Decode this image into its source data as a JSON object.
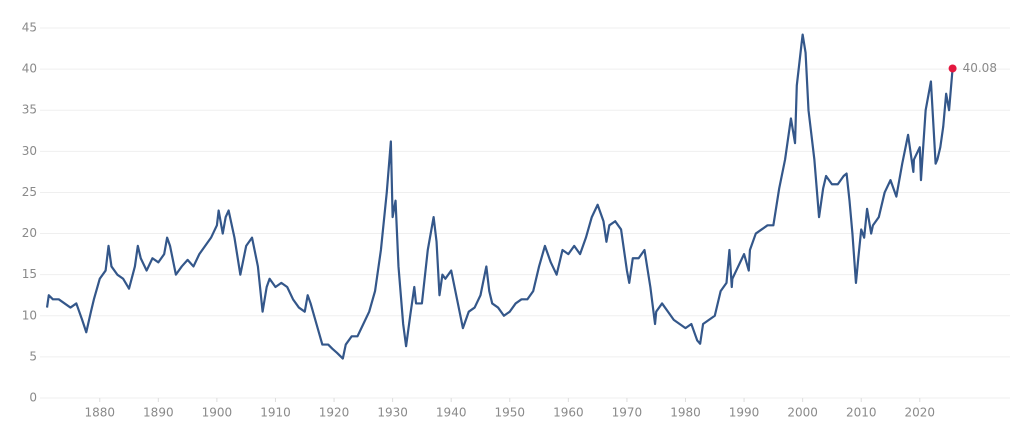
{
  "chart_data": {
    "type": "line",
    "x": [
      1871,
      1871.3,
      1872,
      1873,
      1874,
      1875,
      1876,
      1877,
      1877.7,
      1878.5,
      1879,
      1880,
      1881,
      1881.5,
      1882,
      1883,
      1884,
      1885,
      1886,
      1886.5,
      1887,
      1888,
      1889,
      1890,
      1891,
      1891.5,
      1892,
      1893,
      1894,
      1895,
      1896,
      1897,
      1898,
      1899,
      1900,
      1900.3,
      1901,
      1901.5,
      1902,
      1903,
      1904,
      1905,
      1906,
      1907,
      1907.8,
      1908.5,
      1909,
      1910,
      1911,
      1912,
      1913,
      1914,
      1915,
      1915.5,
      1916,
      1917,
      1918,
      1919,
      1919.7,
      1920.5,
      1921.5,
      1922,
      1923,
      1924,
      1925,
      1926,
      1927,
      1928,
      1929,
      1929.7,
      1930,
      1930.5,
      1931,
      1931.8,
      1932.3,
      1933,
      1933.7,
      1934,
      1935,
      1936,
      1937,
      1937.5,
      1938,
      1938.5,
      1939,
      1940,
      1941,
      1942,
      1943,
      1944,
      1945,
      1946,
      1946.5,
      1947,
      1948,
      1949,
      1950,
      1951,
      1952,
      1953,
      1954,
      1955,
      1956,
      1957,
      1958,
      1959,
      1960,
      1961,
      1962,
      1963,
      1964,
      1965,
      1966,
      1966.5,
      1967,
      1968,
      1969,
      1970,
      1970.4,
      1971,
      1972,
      1973,
      1974,
      1974.8,
      1975,
      1976,
      1977,
      1978,
      1979,
      1980,
      1981,
      1982,
      1982.5,
      1983,
      1984,
      1985,
      1986,
      1987,
      1987.5,
      1987.9,
      1988,
      1989,
      1990,
      1990.8,
      1991,
      1992,
      1993,
      1994,
      1995,
      1996,
      1997,
      1998,
      1998.7,
      1999,
      1999.8,
      2000,
      2000.5,
      2001,
      2002,
      2002.8,
      2003,
      2003.5,
      2004,
      2005,
      2006,
      2007,
      2007.5,
      2008,
      2008.5,
      2009.1,
      2009.5,
      2010,
      2010.5,
      2011,
      2011.7,
      2012,
      2013,
      2014,
      2015,
      2016,
      2017,
      2018,
      2018.9,
      2019,
      2020,
      2020.2,
      2021,
      2021.9,
      2022.7,
      2023,
      2023.5,
      2024,
      2024.5,
      2025,
      2025.6
    ],
    "series": [
      {
        "color": "#34578a",
        "values": [
          11.0,
          12.5,
          12.0,
          12.0,
          11.5,
          11.0,
          11.5,
          9.5,
          8.0,
          10.5,
          12.0,
          14.5,
          15.5,
          18.5,
          16.0,
          15.0,
          14.5,
          13.3,
          16.0,
          18.5,
          17.0,
          15.5,
          17.0,
          16.5,
          17.5,
          19.5,
          18.5,
          15.0,
          16.0,
          16.8,
          16.0,
          17.5,
          18.5,
          19.5,
          21.0,
          22.8,
          20.0,
          22.0,
          22.8,
          19.5,
          15.0,
          18.5,
          19.5,
          16.0,
          10.5,
          13.5,
          14.5,
          13.5,
          14.0,
          13.5,
          12.0,
          11.0,
          10.5,
          12.5,
          11.5,
          9.0,
          6.5,
          6.5,
          6.0,
          5.5,
          4.8,
          6.5,
          7.5,
          7.5,
          9.0,
          10.5,
          13.0,
          18.0,
          25.0,
          31.2,
          22.0,
          24.0,
          16.0,
          9.0,
          6.3,
          10.0,
          13.5,
          11.5,
          11.5,
          18.0,
          22.0,
          19.0,
          12.5,
          15.0,
          14.5,
          15.5,
          12.0,
          8.5,
          10.5,
          11.0,
          12.5,
          16.0,
          13.0,
          11.5,
          11.0,
          10.0,
          10.5,
          11.5,
          12.0,
          12.0,
          13.0,
          16.0,
          18.5,
          16.5,
          15.0,
          18.0,
          17.5,
          18.5,
          17.5,
          19.5,
          22.0,
          23.5,
          21.5,
          19.0,
          21.0,
          21.5,
          20.5,
          15.5,
          14.0,
          17.0,
          17.0,
          18.0,
          13.5,
          9.0,
          10.5,
          11.5,
          10.5,
          9.5,
          9.0,
          8.5,
          9.0,
          7.0,
          6.6,
          9.0,
          9.5,
          10.0,
          13.0,
          14.0,
          18.0,
          13.5,
          14.5,
          16.0,
          17.5,
          15.5,
          18.0,
          20.0,
          20.5,
          21.0,
          21.0,
          25.5,
          29.0,
          34.0,
          31.0,
          38.0,
          43.0,
          44.2,
          42.0,
          35.0,
          29.0,
          22.0,
          23.0,
          25.5,
          27.0,
          26.0,
          26.0,
          27.0,
          27.3,
          24.0,
          20.0,
          14.0,
          17.0,
          20.5,
          19.5,
          23.0,
          20.0,
          21.0,
          22.0,
          25.0,
          26.5,
          24.5,
          28.5,
          32.0,
          27.5,
          29.0,
          30.5,
          26.5,
          35.0,
          38.5,
          28.5,
          29.0,
          30.5,
          33.0,
          37.0,
          35.0,
          40.08
        ]
      }
    ],
    "last_point_color": "#e3173e",
    "annotation": "40.08",
    "xlim": [
      1869.8,
      2035.4
    ],
    "xticks": [
      1880,
      1890,
      1900,
      1910,
      1920,
      1930,
      1940,
      1950,
      1960,
      1970,
      1980,
      1990,
      2000,
      2010,
      2020
    ],
    "ylim": [
      0,
      45
    ],
    "yticks": [
      0,
      5,
      10,
      15,
      20,
      25,
      30,
      35,
      40,
      45
    ],
    "grid": true
  }
}
